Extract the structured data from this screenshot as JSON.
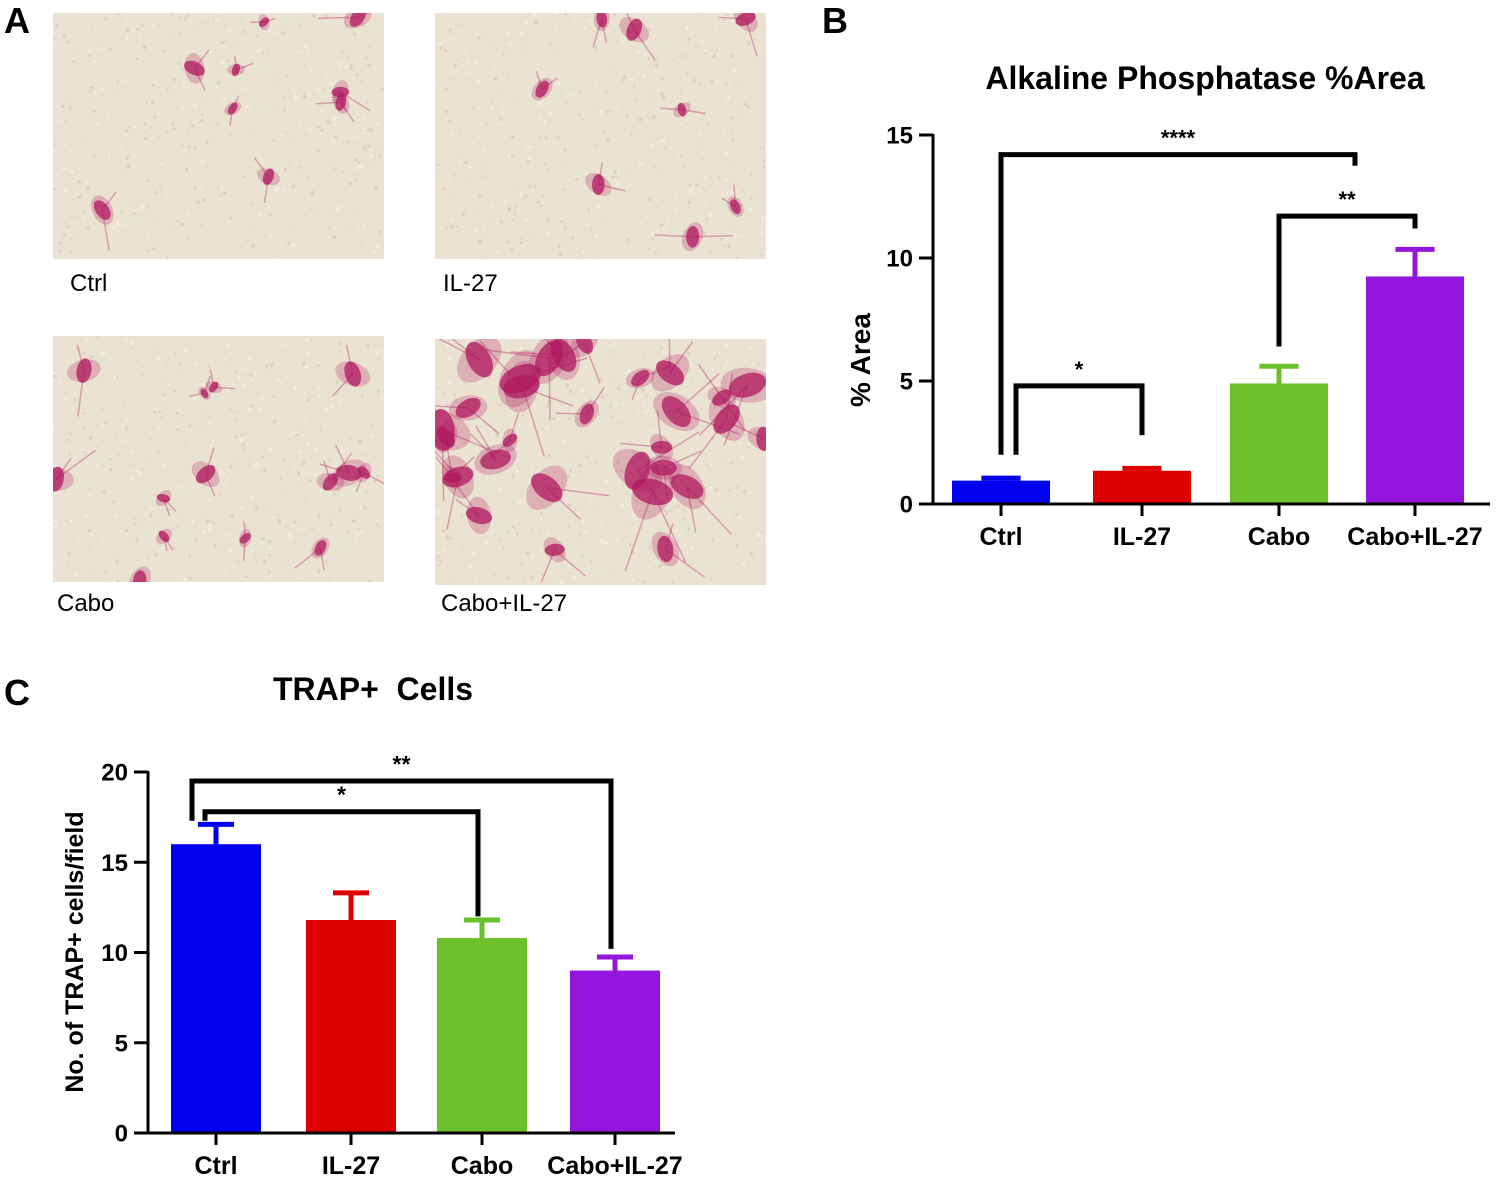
{
  "panels": {
    "a": {
      "letter": "A"
    },
    "b": {
      "letter": "B"
    },
    "c": {
      "letter": "C"
    }
  },
  "micrographs": [
    {
      "label": "Ctrl"
    },
    {
      "label": "IL-27"
    },
    {
      "label": "Cabo"
    },
    {
      "label": "Cabo+IL-27"
    }
  ],
  "colors": {
    "background": "#ebe3d2",
    "stain": "#b0185f",
    "ctrl": "#0000ee",
    "il27": "#dd0000",
    "cabo": "#6cc02c",
    "cabo_il27": "#9315de"
  },
  "chart_data": [
    {
      "type": "bar",
      "title": "Alkaline Phosphatase %Area",
      "xlabel": "",
      "ylabel": "% Area",
      "categories": [
        "Ctrl",
        "IL-27",
        "Cabo",
        "Cabo+IL-27"
      ],
      "values": [
        0.95,
        1.35,
        4.9,
        9.25
      ],
      "errors": [
        0.1,
        0.1,
        0.7,
        1.1
      ],
      "colors": [
        "#0000ee",
        "#dd0000",
        "#6cc02c",
        "#9315de"
      ],
      "ylim": [
        0,
        15
      ],
      "yticks": [
        0,
        5,
        10,
        15
      ],
      "significance": [
        {
          "from": 0,
          "to": 3,
          "label": "****"
        },
        {
          "from": 2,
          "to": 3,
          "label": "**"
        },
        {
          "from": 0,
          "to": 1,
          "label": "*"
        }
      ]
    },
    {
      "type": "bar",
      "title": "TRAP+  Cells",
      "xlabel": "",
      "ylabel": "No. of TRAP+ cells/field",
      "categories": [
        "Ctrl",
        "IL-27",
        "Cabo",
        "Cabo+IL-27"
      ],
      "values": [
        16.0,
        11.8,
        10.8,
        9.0
      ],
      "errors": [
        1.1,
        1.5,
        1.0,
        0.75
      ],
      "colors": [
        "#0000ee",
        "#dd0000",
        "#6cc02c",
        "#9315de"
      ],
      "ylim": [
        0,
        20
      ],
      "yticks": [
        0,
        5,
        10,
        15,
        20
      ],
      "significance": [
        {
          "from": 0,
          "to": 3,
          "label": "**"
        },
        {
          "from": 0,
          "to": 2,
          "label": "*"
        }
      ]
    }
  ]
}
